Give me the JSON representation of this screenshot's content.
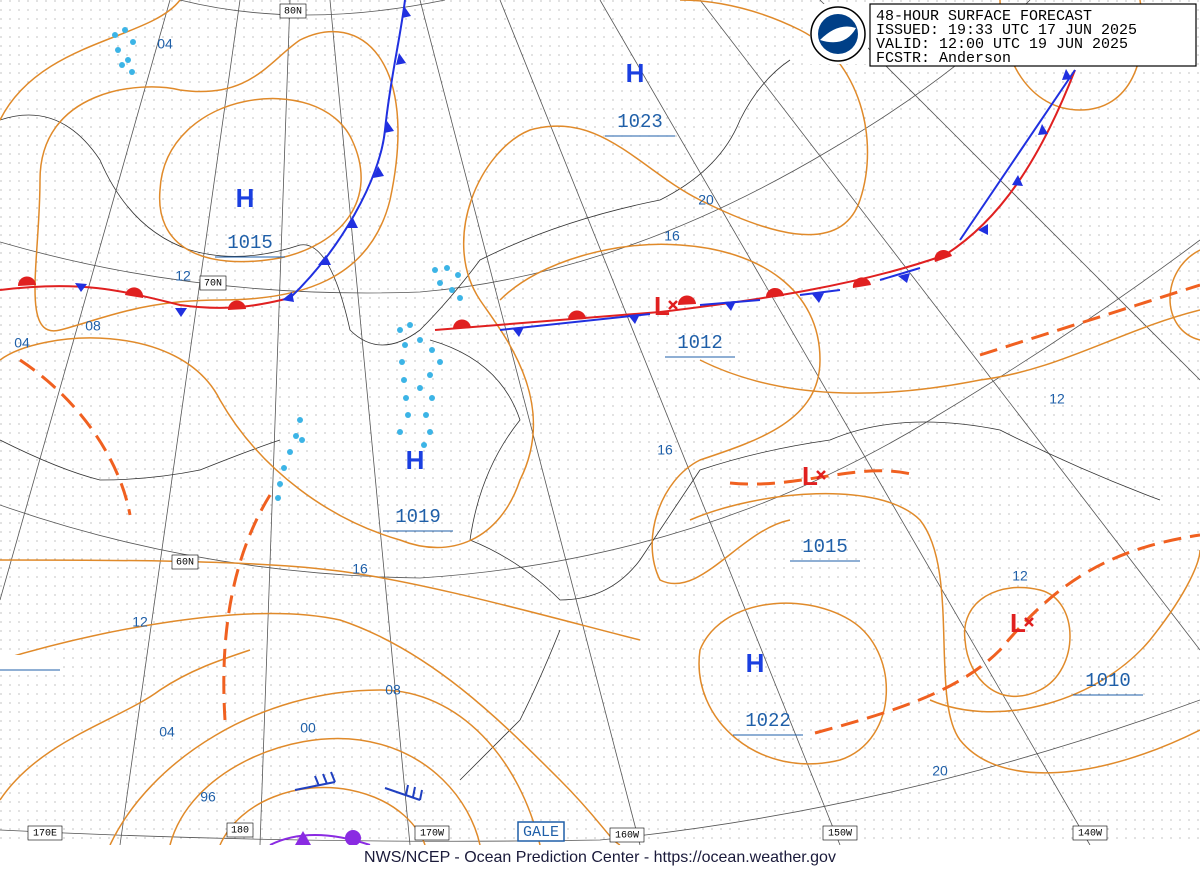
{
  "header": {
    "lines": [
      "48-HOUR SURFACE FORECAST",
      "ISSUED: 19:33 UTC 17 JUN 2025",
      "VALID:  12:00 UTC 19 JUN 2025",
      "FCSTR:  Anderson"
    ]
  },
  "pressure_centers": [
    {
      "symbol": "H",
      "value": "1023"
    },
    {
      "symbol": "H",
      "value": "1015"
    },
    {
      "symbol": "L",
      "value": "1012"
    },
    {
      "symbol": "H",
      "value": "1019"
    },
    {
      "symbol": "L",
      "value": "1015"
    },
    {
      "symbol": "H",
      "value": "1022"
    },
    {
      "symbol": "L",
      "value": "1010"
    }
  ],
  "isobar_labels": [
    "04",
    "12",
    "08",
    "04",
    "20",
    "16",
    "16",
    "12",
    "16",
    "12",
    "08",
    "00",
    "04",
    "96",
    "12",
    "20"
  ],
  "graticule_labels": [
    "80N",
    "70N",
    "60N",
    "170E",
    "180",
    "170W",
    "160W",
    "150W",
    "140W"
  ],
  "warning": "GALE",
  "footer": "NWS/NCEP - Ocean Prediction Center - https://ocean.weather.gov"
}
